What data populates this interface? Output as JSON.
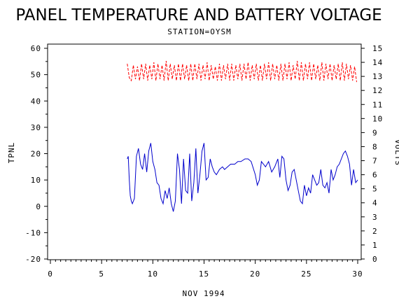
{
  "chart_data": {
    "type": "line",
    "title": "PANEL TEMPERATURE AND BATTERY VOLTAGE",
    "subtitle": "STATION=OYSM",
    "xlabel": "NOV 1994",
    "ylabel_left": "TPNL",
    "ylabel_right": "VOLTS",
    "xlim": [
      0,
      30
    ],
    "ylim_left": [
      -20,
      60
    ],
    "ylim_right": [
      0,
      15
    ],
    "x_ticks": [
      "0",
      "5",
      "10",
      "15",
      "20",
      "25",
      "30"
    ],
    "y_ticks_left": [
      "-20",
      "-10",
      "0",
      "10",
      "20",
      "30",
      "40",
      "50",
      "60"
    ],
    "y_ticks_right": [
      "0",
      "1",
      "2",
      "3",
      "4",
      "5",
      "6",
      "7",
      "8",
      "9",
      "10",
      "11",
      "12",
      "13",
      "14",
      "15"
    ],
    "grid": false,
    "series": [
      {
        "axis": "left",
        "color": "#0000cc",
        "style": "solid",
        "x": [
          7.5,
          7.6,
          7.7,
          7.8,
          7.9,
          8.0,
          8.2,
          8.4,
          8.6,
          8.8,
          9.0,
          9.2,
          9.4,
          9.6,
          9.8,
          10.0,
          10.2,
          10.4,
          10.6,
          10.8,
          11.0,
          11.2,
          11.4,
          11.6,
          11.8,
          12.0,
          12.2,
          12.4,
          12.6,
          12.8,
          13.0,
          13.2,
          13.4,
          13.6,
          13.8,
          14.0,
          14.2,
          14.4,
          14.6,
          14.8,
          15.0,
          15.2,
          15.4,
          15.6,
          15.8,
          16.0,
          16.2,
          16.5,
          16.8,
          17.0,
          17.3,
          17.6,
          18.0,
          18.3,
          18.6,
          19.0,
          19.3,
          19.6,
          20.0,
          20.2,
          20.4,
          20.6,
          20.8,
          21.0,
          21.3,
          21.6,
          21.9,
          22.2,
          22.4,
          22.6,
          22.8,
          23.0,
          23.2,
          23.4,
          23.6,
          23.8,
          24.0,
          24.2,
          24.4,
          24.6,
          24.8,
          25.0,
          25.2,
          25.4,
          25.6,
          25.8,
          26.0,
          26.2,
          26.4,
          26.6,
          26.8,
          27.0,
          27.2,
          27.4,
          27.6,
          27.8,
          28.0,
          28.2,
          28.4,
          28.6,
          28.8,
          29.0,
          29.2,
          29.4,
          29.6,
          29.8,
          30.0
        ],
        "values": [
          18,
          19,
          10,
          4,
          2,
          1,
          3,
          19,
          22,
          16,
          14,
          20,
          13,
          21,
          24,
          17,
          14,
          9,
          8,
          3,
          1,
          6,
          3,
          7,
          1,
          -2,
          2,
          20,
          14,
          1,
          18,
          6,
          5,
          20,
          2,
          9,
          22,
          5,
          12,
          21,
          24,
          10,
          11,
          18,
          15,
          13,
          12,
          14,
          15,
          14,
          15,
          16,
          16,
          17,
          17,
          18,
          18,
          17,
          12,
          8,
          10,
          17,
          16,
          15,
          17,
          13,
          15,
          18,
          11,
          19,
          18,
          10,
          6,
          8,
          13,
          14,
          10,
          6,
          2,
          1,
          8,
          4,
          7,
          5,
          12,
          10,
          8,
          9,
          14,
          8,
          7,
          9,
          5,
          14,
          10,
          12,
          15,
          16,
          18,
          20,
          21,
          19,
          16,
          8,
          14,
          9,
          10
        ]
      },
      {
        "axis": "right",
        "color": "#ff0000",
        "style": "dashed",
        "x": [
          7.5,
          7.7,
          7.9,
          8.1,
          8.3,
          8.5,
          8.7,
          8.9,
          9.1,
          9.3,
          9.5,
          9.7,
          9.9,
          10.1,
          10.3,
          10.5,
          10.7,
          10.9,
          11.1,
          11.3,
          11.5,
          11.7,
          11.9,
          12.1,
          12.3,
          12.5,
          12.7,
          12.9,
          13.1,
          13.3,
          13.5,
          13.7,
          13.9,
          14.1,
          14.3,
          14.5,
          14.7,
          14.9,
          15.1,
          15.3,
          15.5,
          15.7,
          15.9,
          16.1,
          16.3,
          16.5,
          16.7,
          16.9,
          17.1,
          17.3,
          17.5,
          17.7,
          17.9,
          18.1,
          18.3,
          18.5,
          18.7,
          18.9,
          19.1,
          19.3,
          19.5,
          19.7,
          19.9,
          20.1,
          20.3,
          20.5,
          20.7,
          20.9,
          21.1,
          21.3,
          21.5,
          21.7,
          21.9,
          22.1,
          22.3,
          22.5,
          22.7,
          22.9,
          23.1,
          23.3,
          23.5,
          23.7,
          23.9,
          24.1,
          24.3,
          24.5,
          24.7,
          24.9,
          25.1,
          25.3,
          25.5,
          25.7,
          25.9,
          26.1,
          26.3,
          26.5,
          26.7,
          26.9,
          27.1,
          27.3,
          27.5,
          27.7,
          27.9,
          28.1,
          28.3,
          28.5,
          28.7,
          28.9,
          29.1,
          29.3,
          29.5,
          29.7,
          29.9
        ],
        "values": [
          13.9,
          12.9,
          12.7,
          13.8,
          12.8,
          13.7,
          12.7,
          13.9,
          12.8,
          13.9,
          12.7,
          13.8,
          12.8,
          14.0,
          12.7,
          13.9,
          12.8,
          13.8,
          12.7,
          14.1,
          12.7,
          13.9,
          12.8,
          13.8,
          12.7,
          13.9,
          12.7,
          13.9,
          12.8,
          13.8,
          12.7,
          13.9,
          12.7,
          13.9,
          12.8,
          13.9,
          12.7,
          13.8,
          12.8,
          14.0,
          12.7,
          13.8,
          12.8,
          13.7,
          12.7,
          13.9,
          12.7,
          13.8,
          12.8,
          13.9,
          12.7,
          13.9,
          12.7,
          13.8,
          12.8,
          13.9,
          12.7,
          13.9,
          12.8,
          14.0,
          12.7,
          13.8,
          12.8,
          13.9,
          12.7,
          13.8,
          12.7,
          13.9,
          12.8,
          14.0,
          12.7,
          13.9,
          12.8,
          13.8,
          12.7,
          13.9,
          12.7,
          13.9,
          12.8,
          14.0,
          12.7,
          13.8,
          12.8,
          14.1,
          12.7,
          14.0,
          12.7,
          13.9,
          12.8,
          14.0,
          12.7,
          13.9,
          12.8,
          13.8,
          12.7,
          14.0,
          12.7,
          13.9,
          12.8,
          13.9,
          12.7,
          13.8,
          12.8,
          13.9,
          12.7,
          14.0,
          12.7,
          13.9,
          12.8,
          13.8,
          12.7,
          13.7,
          12.6
        ]
      }
    ]
  }
}
